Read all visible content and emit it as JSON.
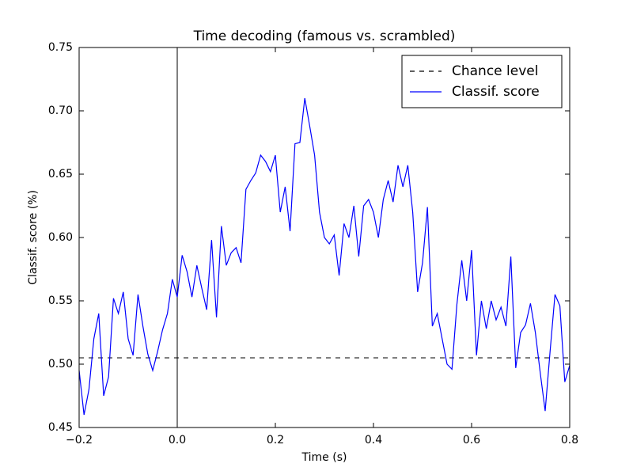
{
  "chart_data": {
    "type": "line",
    "title": "Time decoding (famous vs. scrambled)",
    "xlabel": "Time (s)",
    "ylabel": "Classif. score (%)",
    "x": [
      -0.2,
      -0.19,
      -0.18,
      -0.17,
      -0.16,
      -0.15,
      -0.14,
      -0.13,
      -0.12,
      -0.11,
      -0.1,
      -0.09,
      -0.08,
      -0.07,
      -0.06,
      -0.05,
      -0.04,
      -0.03,
      -0.02,
      -0.01,
      0,
      0.01,
      0.02,
      0.03,
      0.04,
      0.05,
      0.06,
      0.07,
      0.08,
      0.09,
      0.1,
      0.11,
      0.12,
      0.13,
      0.14,
      0.15,
      0.16,
      0.17,
      0.18,
      0.19,
      0.2,
      0.21,
      0.22,
      0.23,
      0.24,
      0.25,
      0.26,
      0.27,
      0.28,
      0.29,
      0.3,
      0.31,
      0.32,
      0.33,
      0.34,
      0.35,
      0.36,
      0.37,
      0.38,
      0.39,
      0.4,
      0.41,
      0.42,
      0.43,
      0.44,
      0.45,
      0.46,
      0.47,
      0.48,
      0.49,
      0.5,
      0.51,
      0.52,
      0.53,
      0.54,
      0.55,
      0.56,
      0.57,
      0.58,
      0.59,
      0.6,
      0.61,
      0.62,
      0.63,
      0.64,
      0.65,
      0.66,
      0.67,
      0.68,
      0.69,
      0.7,
      0.71,
      0.72,
      0.73,
      0.74,
      0.75,
      0.76,
      0.77,
      0.78,
      0.79,
      0.8
    ],
    "series": [
      {
        "name": "Classif. score",
        "color": "#0000ff",
        "values": [
          0.495,
          0.46,
          0.48,
          0.52,
          0.54,
          0.475,
          0.49,
          0.552,
          0.54,
          0.557,
          0.52,
          0.507,
          0.555,
          0.53,
          0.508,
          0.495,
          0.51,
          0.527,
          0.54,
          0.567,
          0.553,
          0.586,
          0.573,
          0.553,
          0.578,
          0.56,
          0.543,
          0.598,
          0.537,
          0.609,
          0.578,
          0.588,
          0.592,
          0.58,
          0.638,
          0.645,
          0.651,
          0.665,
          0.66,
          0.652,
          0.665,
          0.62,
          0.64,
          0.605,
          0.674,
          0.675,
          0.71,
          0.688,
          0.665,
          0.62,
          0.6,
          0.595,
          0.602,
          0.57,
          0.611,
          0.6,
          0.625,
          0.585,
          0.625,
          0.63,
          0.62,
          0.6,
          0.63,
          0.645,
          0.628,
          0.657,
          0.64,
          0.657,
          0.62,
          0.557,
          0.58,
          0.624,
          0.53,
          0.54,
          0.52,
          0.5,
          0.496,
          0.547,
          0.582,
          0.55,
          0.59,
          0.507,
          0.55,
          0.528,
          0.55,
          0.535,
          0.545,
          0.53,
          0.585,
          0.497,
          0.525,
          0.531,
          0.548,
          0.525,
          0.493,
          0.463,
          0.51,
          0.555,
          0.546,
          0.486,
          0.499
        ]
      }
    ],
    "hlines": [
      {
        "name": "Chance level",
        "value": 0.505,
        "color": "#000000",
        "dashed": true
      }
    ],
    "vlines": [
      {
        "value": 0,
        "color": "#000000"
      }
    ],
    "xlim": [
      -0.2,
      0.8
    ],
    "xticks": [
      {
        "value": -0.2,
        "label": "−0.2"
      },
      {
        "value": 0,
        "label": "0.0"
      },
      0.2,
      0.4,
      0.6,
      0.8
    ],
    "ylim": [
      0.45,
      0.75
    ],
    "yticks": [
      0.45,
      {
        "value": 0.5,
        "label": "0.50"
      },
      0.55,
      {
        "value": 0.6,
        "label": "0.60"
      },
      0.65,
      {
        "value": 0.7,
        "label": "0.70"
      },
      0.75
    ],
    "legend": "upper right",
    "grid": false
  }
}
